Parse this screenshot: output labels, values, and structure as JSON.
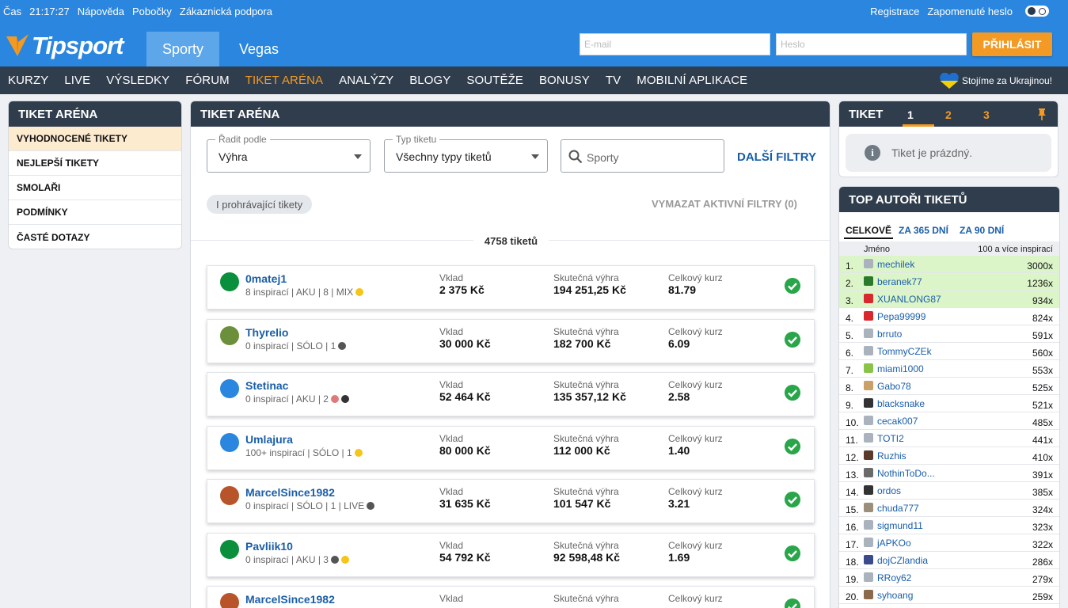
{
  "topbar": {
    "time_label": "Čas",
    "time": "21:17:27",
    "help": "Nápověda",
    "branches": "Pobočky",
    "support": "Zákaznická podpora",
    "register": "Registrace",
    "forgot": "Zapomenuté heslo"
  },
  "header": {
    "logo": "Tipsport",
    "tab_sports": "Sporty",
    "tab_vegas": "Vegas",
    "email_placeholder": "E-mail",
    "password_placeholder": "Heslo",
    "login_label": "PŘIHLÁSIT"
  },
  "nav": {
    "items": [
      "KURZY",
      "LIVE",
      "VÝSLEDKY",
      "FÓRUM",
      "TIKET ARÉNA",
      "ANALÝZY",
      "BLOGY",
      "SOUTĚŽE",
      "BONUSY",
      "TV",
      "MOBILNÍ APLIKACE"
    ],
    "active": "TIKET ARÉNA",
    "ukraine": "Stojíme za Ukrajinou!"
  },
  "left": {
    "title": "TIKET ARÉNA",
    "items": [
      "VYHODNOCENÉ TIKETY",
      "NEJLEPŠÍ TIKETY",
      "SMOLAŘI",
      "PODMÍNKY",
      "ČASTÉ DOTAZY"
    ]
  },
  "main": {
    "title": "TIKET ARÉNA",
    "sort_label": "Řadit podle",
    "sort_value": "Výhra",
    "type_label": "Typ tiketu",
    "type_value": "Všechny typy tiketů",
    "search_placeholder": "Sporty",
    "more_filters": "DALŠÍ FILTRY",
    "chip": "I prohrávající tikety",
    "clear_filters": "VYMAZAT AKTIVNÍ FILTRY (0)",
    "count": "4758 tiketů",
    "col_stake": "Vklad",
    "col_win": "Skutečná výhra",
    "col_odds": "Celkový kurz",
    "tickets": [
      {
        "name": "0matej1",
        "meta": "8 inspirací | AKU | 8 | MIX",
        "stake": "2 375 Kč",
        "win": "194 251,25 Kč",
        "odds": "81.79",
        "avatar_color": "#0a8f3c",
        "icons": [
          "#f5c518"
        ]
      },
      {
        "name": "Thyrelio",
        "meta": "0 inspirací | SÓLO | 1",
        "stake": "30 000 Kč",
        "win": "182 700 Kč",
        "odds": "6.09",
        "avatar_color": "#6b8f3a",
        "icons": [
          "#555555"
        ]
      },
      {
        "name": "Stetinac",
        "meta": "0 inspirací | AKU | 2",
        "stake": "52 464 Kč",
        "win": "135 357,12 Kč",
        "odds": "2.58",
        "avatar_color": "#2a86de",
        "icons": [
          "#e07a7a",
          "#333333"
        ]
      },
      {
        "name": "Umlajura",
        "meta": "100+ inspirací | SÓLO | 1",
        "stake": "80 000 Kč",
        "win": "112 000 Kč",
        "odds": "1.40",
        "avatar_color": "#2a86de",
        "icons": [
          "#f5c518"
        ]
      },
      {
        "name": "MarcelSince1982",
        "meta": "0 inspirací | SÓLO | 1 | LIVE",
        "stake": "31 635 Kč",
        "win": "101 547 Kč",
        "odds": "3.21",
        "avatar_color": "#b8542a",
        "icons": [
          "#555555"
        ]
      },
      {
        "name": "Pavliik10",
        "meta": "0 inspirací | AKU | 3",
        "stake": "54 792 Kč",
        "win": "92 598,48 Kč",
        "odds": "1.69",
        "avatar_color": "#0a8f3c",
        "icons": [
          "#555555",
          "#f5c518"
        ]
      },
      {
        "name": "MarcelSince1982",
        "meta": "",
        "stake": "",
        "win": "",
        "odds": "",
        "avatar_color": "#b8542a",
        "icons": []
      }
    ]
  },
  "ticket": {
    "title": "TIKET",
    "tabs": [
      "1",
      "2",
      "3"
    ],
    "empty": "Tiket je prázdný."
  },
  "authors": {
    "title": "TOP AUTOŘI TIKETŮ",
    "tabs": [
      "CELKOVĚ",
      "ZA 365 DNÍ",
      "ZA 90 DNÍ"
    ],
    "col_name": "Jméno",
    "col_count": "100 a více inspirací",
    "rows": [
      {
        "rank": "1.",
        "name": "mechilek",
        "count": "3000x",
        "hl": true,
        "color": "#aab3bd"
      },
      {
        "rank": "2.",
        "name": "beranek77",
        "count": "1236x",
        "hl": true,
        "color": "#2b7a2b"
      },
      {
        "rank": "3.",
        "name": "XUANLONG87",
        "count": "934x",
        "hl": true,
        "color": "#d9272e"
      },
      {
        "rank": "4.",
        "name": "Pepa99999",
        "count": "824x",
        "hl": false,
        "color": "#d9272e"
      },
      {
        "rank": "5.",
        "name": "brruto",
        "count": "591x",
        "hl": false,
        "color": "#aab3bd"
      },
      {
        "rank": "6.",
        "name": "TommyCZEk",
        "count": "560x",
        "hl": false,
        "color": "#aab3bd"
      },
      {
        "rank": "7.",
        "name": "miami1000",
        "count": "553x",
        "hl": false,
        "color": "#8bc34a"
      },
      {
        "rank": "8.",
        "name": "Gabo78",
        "count": "525x",
        "hl": false,
        "color": "#c9a06a"
      },
      {
        "rank": "9.",
        "name": "blacksnake",
        "count": "521x",
        "hl": false,
        "color": "#333333"
      },
      {
        "rank": "10.",
        "name": "cecak007",
        "count": "485x",
        "hl": false,
        "color": "#aab3bd"
      },
      {
        "rank": "11.",
        "name": "TOTI2",
        "count": "441x",
        "hl": false,
        "color": "#aab3bd"
      },
      {
        "rank": "12.",
        "name": "Ruzhis",
        "count": "410x",
        "hl": false,
        "color": "#5a3a2a"
      },
      {
        "rank": "13.",
        "name": "NothinToDo...",
        "count": "391x",
        "hl": false,
        "color": "#6a6a6a"
      },
      {
        "rank": "14.",
        "name": "ordos",
        "count": "385x",
        "hl": false,
        "color": "#333333"
      },
      {
        "rank": "15.",
        "name": "chuda777",
        "count": "324x",
        "hl": false,
        "color": "#9a8f7a"
      },
      {
        "rank": "16.",
        "name": "sigmund11",
        "count": "323x",
        "hl": false,
        "color": "#aab3bd"
      },
      {
        "rank": "17.",
        "name": "jAPKOo",
        "count": "322x",
        "hl": false,
        "color": "#aab3bd"
      },
      {
        "rank": "18.",
        "name": "dojCZlandia",
        "count": "286x",
        "hl": false,
        "color": "#3a4a8a"
      },
      {
        "rank": "19.",
        "name": "RRoy62",
        "count": "279x",
        "hl": false,
        "color": "#aab3bd"
      },
      {
        "rank": "20.",
        "name": "syhoang",
        "count": "259x",
        "hl": false,
        "color": "#8a6a4a"
      }
    ]
  },
  "colors": {
    "brand_blue": "#2a86de",
    "nav_dark": "#303d4d",
    "accent_orange": "#f29a24",
    "link_blue": "#1a5ea8",
    "success_green": "#2aa64a"
  }
}
